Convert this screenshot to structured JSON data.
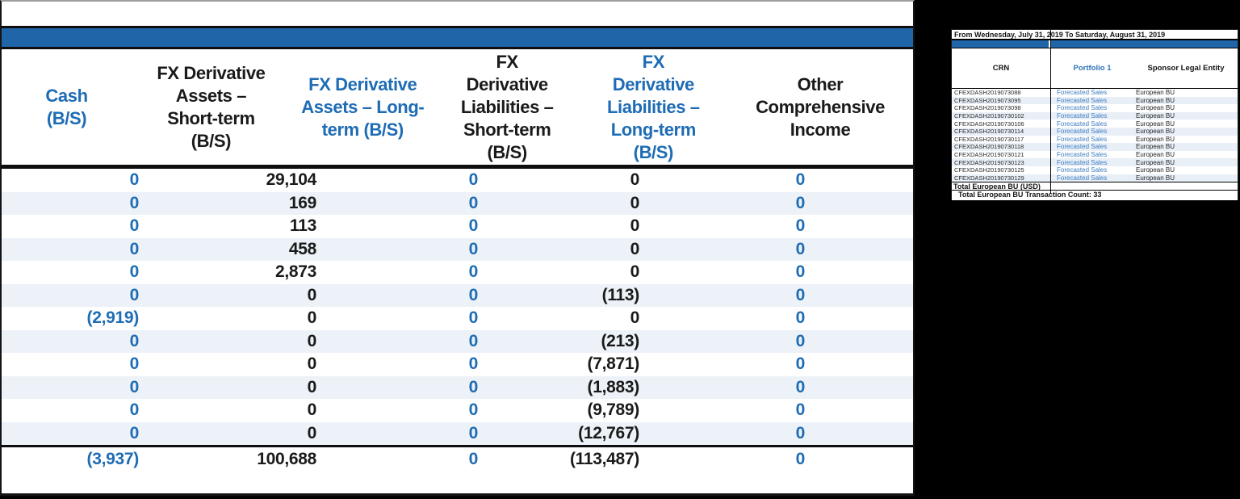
{
  "colors": {
    "accent_blue": "#1E6CB4",
    "band_blue": "#2065A7",
    "main_stripe": "#ECF2F8",
    "side_stripe": "#E8EFF7",
    "text_black": "#1A1A1A",
    "background": "#000000"
  },
  "main_table": {
    "band_title": "",
    "columns": [
      {
        "id": "cash",
        "label": "Cash\n(B/S)",
        "color": "blue"
      },
      {
        "id": "fx-derivative-assets-short-term",
        "label": "FX Derivative\nAssets –\nShort-term\n(B/S)",
        "color": "black"
      },
      {
        "id": "fx-derivative-assets-long-term",
        "label": "FX Derivative\nAssets – Long-\nterm (B/S)",
        "color": "blue"
      },
      {
        "id": "fx-derivative-liabilities-short-term",
        "label": "FX\nDerivative\nLiabilities –\nShort-term\n(B/S)",
        "color": "black"
      },
      {
        "id": "fx-derivative-liabilities-long-term",
        "label": "FX\nDerivative\nLiabilities –\nLong-term\n(B/S)",
        "color": "blue"
      },
      {
        "id": "other-comprehensive-income",
        "label": "Other\nComprehensive\nIncome",
        "color": "black",
        "clipped": true
      }
    ],
    "rows": [
      [
        "0",
        "29,104",
        "0",
        "0",
        "0"
      ],
      [
        "0",
        "169",
        "0",
        "0",
        "0"
      ],
      [
        "0",
        "113",
        "0",
        "0",
        "0"
      ],
      [
        "0",
        "458",
        "0",
        "0",
        "0"
      ],
      [
        "0",
        "2,873",
        "0",
        "0",
        "0"
      ],
      [
        "0",
        "0",
        "0",
        "(113)",
        "0"
      ],
      [
        "(2,919)",
        "0",
        "0",
        "0",
        "0"
      ],
      [
        "0",
        "0",
        "0",
        "(213)",
        "0"
      ],
      [
        "0",
        "0",
        "0",
        "(7,871)",
        "0"
      ],
      [
        "0",
        "0",
        "0",
        "(1,883)",
        "0"
      ],
      [
        "0",
        "0",
        "0",
        "(9,789)",
        "0"
      ],
      [
        "0",
        "0",
        "0",
        "(12,767)",
        "0"
      ]
    ],
    "total_row": [
      "(3,937)",
      "100,688",
      "0",
      "(113,487)",
      "0"
    ]
  },
  "side_table": {
    "date_range": "From Wednesday, July 31, 2019 To Saturday, August 31, 2019",
    "columns": [
      "CRN",
      "Portfolio 1",
      "Sponsor Legal Entity"
    ],
    "rows": [
      {
        "crn": "CFEXDASH2019073088",
        "portfolio": "Forecasted Sales",
        "entity": "European BU"
      },
      {
        "crn": "CFEXDASH2019073095",
        "portfolio": "Forecasted Sales",
        "entity": "European BU"
      },
      {
        "crn": "CFEXDASH2019073098",
        "portfolio": "Forecasted Sales",
        "entity": "European BU"
      },
      {
        "crn": "CFEXDASH20190730102",
        "portfolio": "Forecasted Sales",
        "entity": "European BU"
      },
      {
        "crn": "CFEXDASH20190730106",
        "portfolio": "Forecasted Sales",
        "entity": "European BU"
      },
      {
        "crn": "CFEXDASH20190730114",
        "portfolio": "Forecasted Sales",
        "entity": "European BU"
      },
      {
        "crn": "CFEXDASH20190730117",
        "portfolio": "Forecasted Sales",
        "entity": "European BU"
      },
      {
        "crn": "CFEXDASH20190730118",
        "portfolio": "Forecasted Sales",
        "entity": "European BU"
      },
      {
        "crn": "CFEXDASH20190730121",
        "portfolio": "Forecasted Sales",
        "entity": "European BU"
      },
      {
        "crn": "CFEXDASH20190730123",
        "portfolio": "Forecasted Sales",
        "entity": "European BU"
      },
      {
        "crn": "CFEXDASH20190730125",
        "portfolio": "Forecasted Sales",
        "entity": "European BU"
      },
      {
        "crn": "CFEXDASH20190730129",
        "portfolio": "Forecasted Sales",
        "entity": "European BU"
      }
    ],
    "total_label": "Total European BU (USD)",
    "transaction_count": "Total European BU Transaction Count: 33"
  }
}
